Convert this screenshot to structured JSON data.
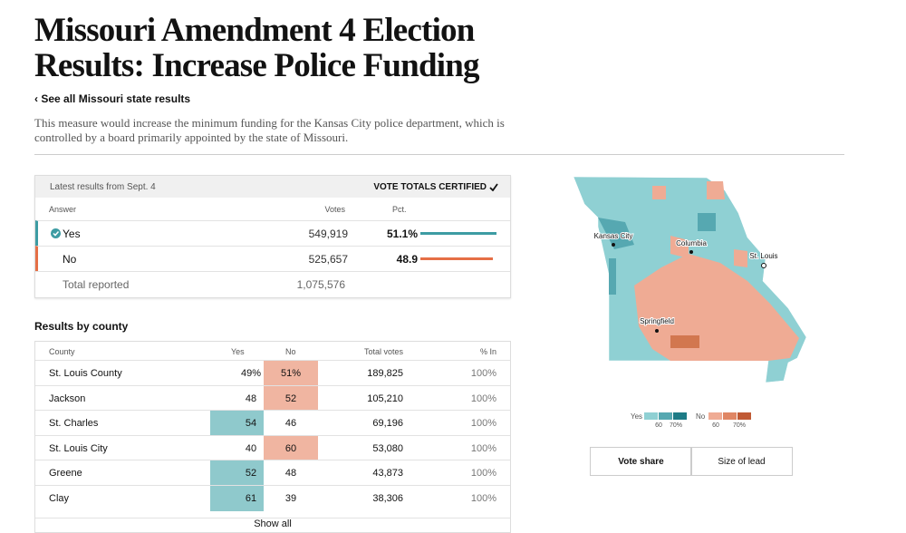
{
  "header": {
    "title": "Missouri Amendment 4 Election Results: Increase Police Funding",
    "back_link": "‹ See all Missouri state results",
    "description": "This measure would increase the minimum funding for the Kansas City police department, which is controlled by a board primarily appointed by the state of Missouri."
  },
  "results": {
    "updated": "Latest results from Sept. 4",
    "status": "VOTE TOTALS CERTIFIED",
    "columns": [
      "Answer",
      "Votes",
      "Pct."
    ],
    "rows": [
      {
        "answer": "Yes",
        "votes": "549,919",
        "pct": {
          "value": 51.1,
          "label": "51.1%"
        }
      },
      {
        "answer": "No",
        "votes": "525,657",
        "pct": {
          "value": 48.9,
          "label": "48.9"
        }
      }
    ],
    "total": {
      "label": "Total reported",
      "votes": "1,075,576"
    }
  },
  "county": {
    "title": "Results by county",
    "columns": [
      "County",
      "Yes",
      "No",
      "Total votes",
      "% In"
    ],
    "rows": [
      [
        "St. Louis County",
        "49%",
        "51%",
        "189,825",
        "100%"
      ],
      [
        "Jackson",
        "48",
        "52",
        "105,210",
        "100%"
      ],
      [
        "St. Charles",
        "54",
        "46",
        "69,196",
        "100%"
      ],
      [
        "St. Louis City",
        "40",
        "60",
        "53,080",
        "100%"
      ],
      [
        "Greene",
        "52",
        "48",
        "43,873",
        "100%"
      ],
      [
        "Clay",
        "61",
        "39",
        "38,306",
        "100%"
      ]
    ],
    "show_all": "Show all"
  },
  "map": {
    "cities": [
      "Kansas City",
      "Columbia",
      "St. Louis",
      "Springfield"
    ],
    "legend": {
      "yes": "Yes",
      "no": "No",
      "ticks": [
        "60",
        "70%"
      ]
    }
  },
  "toggle": [
    "Vote share",
    "Size of lead"
  ]
}
